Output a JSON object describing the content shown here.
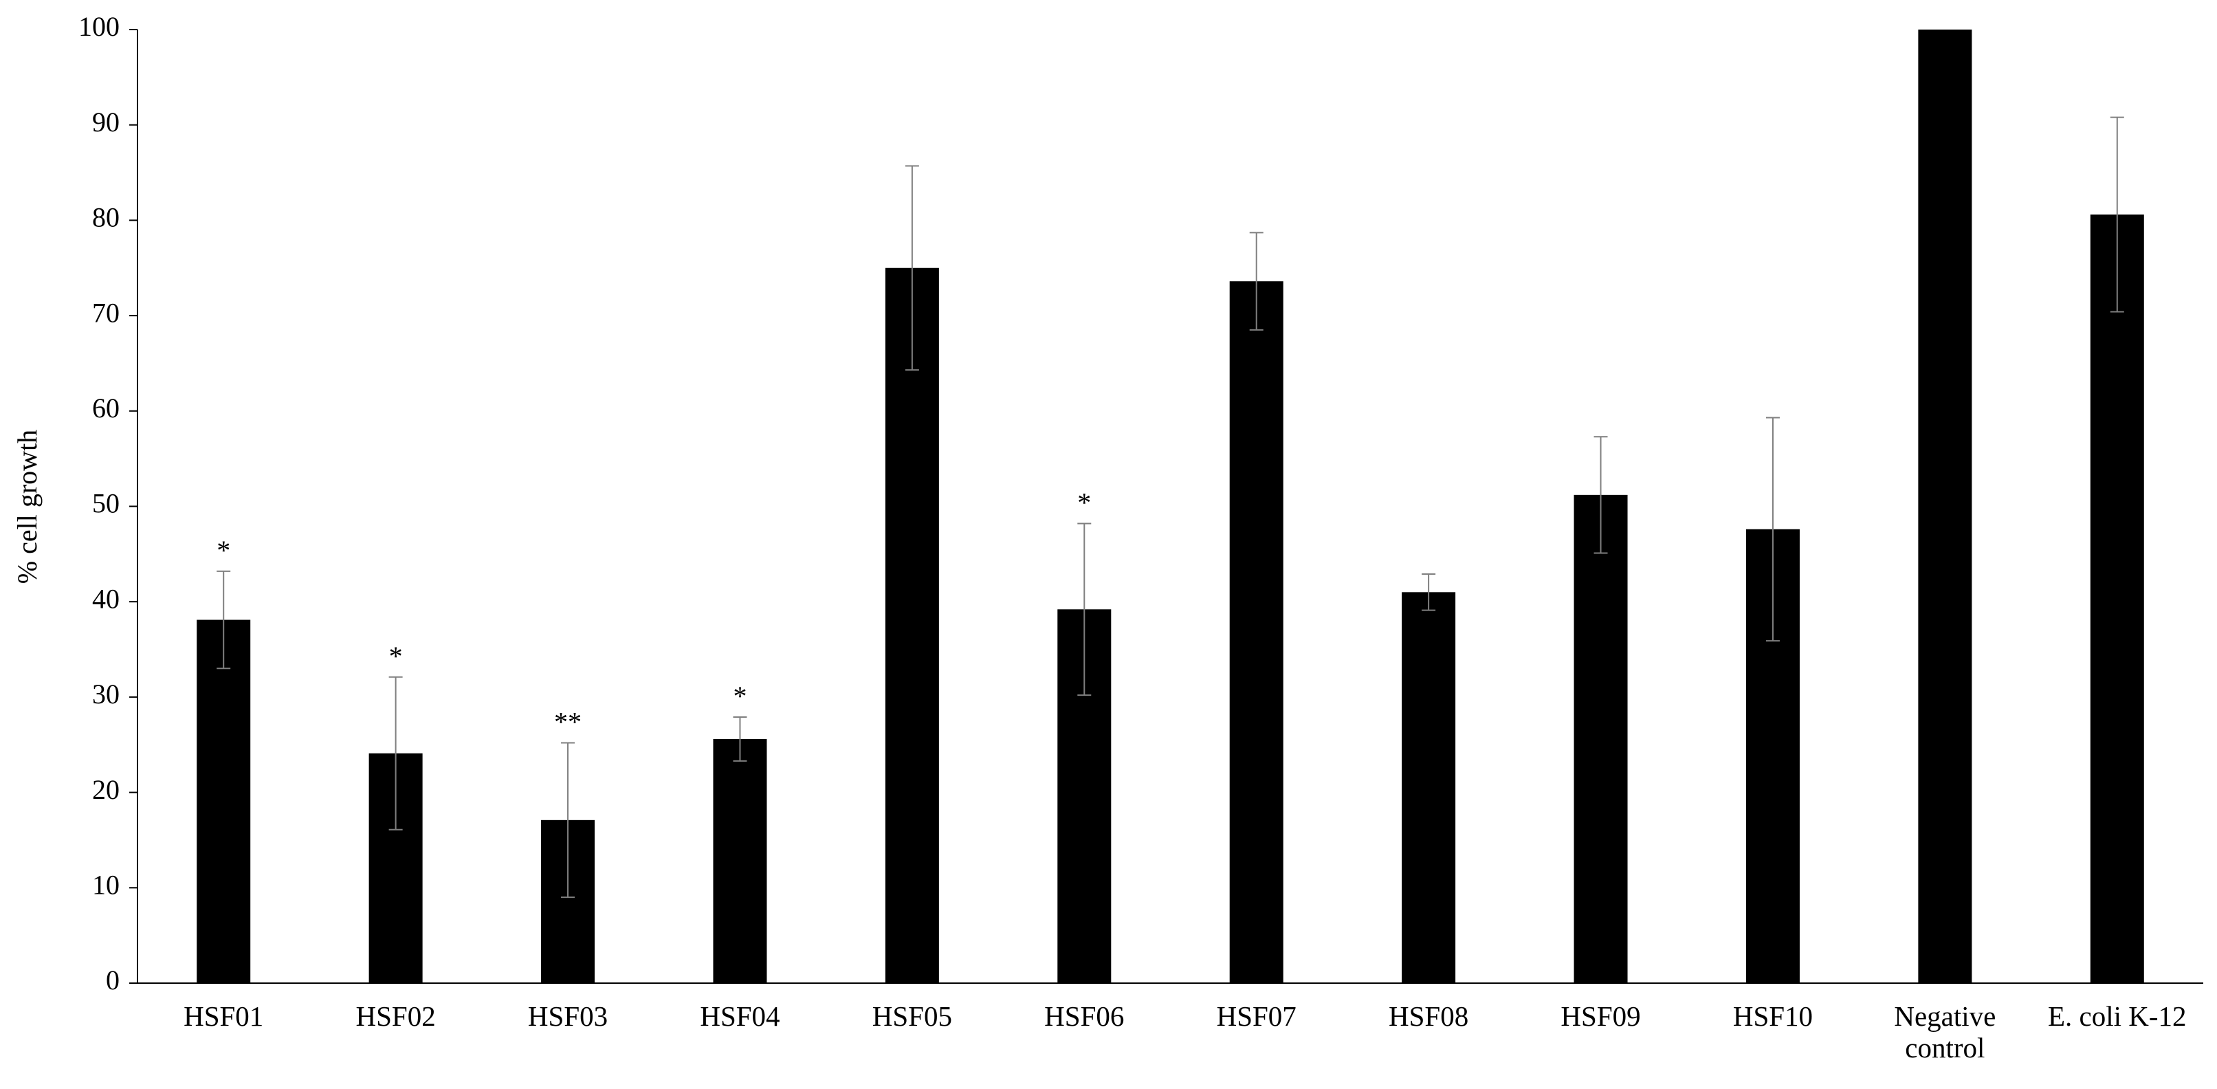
{
  "chart_data": {
    "type": "bar",
    "y_label": "% cell growth",
    "categories": [
      "HSF01",
      "HSF02",
      "HSF03",
      "HSF04",
      "HSF05",
      "HSF06",
      "HSF07",
      "HSF08",
      "HSF09",
      "HSF10",
      "Negative control",
      "E. coli K-12"
    ],
    "values": [
      38.1,
      24.1,
      17.1,
      25.6,
      75,
      39.2,
      73.6,
      41,
      51.2,
      47.6,
      100,
      80.6
    ],
    "errors": [
      5.1,
      8,
      8.1,
      2.3,
      10.7,
      9,
      5.1,
      1.9,
      6.1,
      11.7,
      null,
      10.2
    ],
    "significance": [
      "*",
      "*",
      "**",
      "*",
      null,
      "*",
      null,
      null,
      null,
      null,
      null,
      null
    ],
    "color": "#000000",
    "error_color": "#7f7f7f",
    "ylim": [
      0,
      100
    ],
    "yticks": [
      0,
      10,
      20,
      30,
      40,
      50,
      60,
      70,
      80,
      90,
      100
    ],
    "grid": false
  }
}
